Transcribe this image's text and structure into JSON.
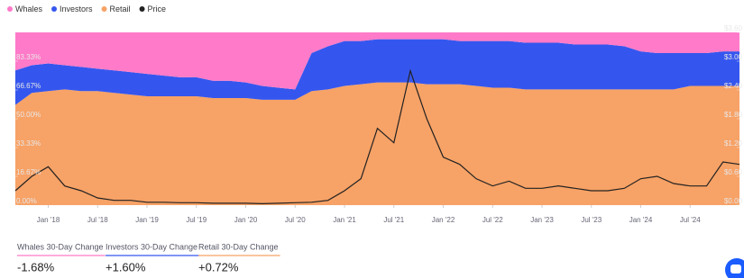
{
  "chart_data": {
    "type": "stacked-area-line",
    "x": [
      "2017-09",
      "2017-11",
      "2018-01",
      "2018-03",
      "2018-05",
      "2018-07",
      "2018-09",
      "2018-11",
      "2019-01",
      "2019-03",
      "2019-05",
      "2019-07",
      "2019-09",
      "2019-11",
      "2020-01",
      "2020-03",
      "2020-05",
      "2020-07",
      "2020-09",
      "2020-11",
      "2021-01",
      "2021-03",
      "2021-05",
      "2021-07",
      "2021-09",
      "2021-11",
      "2022-01",
      "2022-03",
      "2022-05",
      "2022-07",
      "2022-09",
      "2022-11",
      "2023-01",
      "2023-03",
      "2023-05",
      "2023-07",
      "2023-09",
      "2023-11",
      "2024-01",
      "2024-03",
      "2024-05",
      "2024-07",
      "2024-09",
      "2024-11",
      "2025-01"
    ],
    "xlim": [
      "2017-09",
      "2025-01"
    ],
    "xticks": [
      {
        "value": "2018-01",
        "label": "Jan '18"
      },
      {
        "value": "2018-07",
        "label": "Jul '18"
      },
      {
        "value": "2019-01",
        "label": "Jan '19"
      },
      {
        "value": "2019-07",
        "label": "Jul '19"
      },
      {
        "value": "2020-01",
        "label": "Jan '20"
      },
      {
        "value": "2020-07",
        "label": "Jul '20"
      },
      {
        "value": "2021-01",
        "label": "Jan '21"
      },
      {
        "value": "2021-07",
        "label": "Jul '21"
      },
      {
        "value": "2022-01",
        "label": "Jan '22"
      },
      {
        "value": "2022-07",
        "label": "Jul '22"
      },
      {
        "value": "2023-01",
        "label": "Jan '23"
      },
      {
        "value": "2023-07",
        "label": "Jul '23"
      },
      {
        "value": "2024-01",
        "label": "Jan '24"
      },
      {
        "value": "2024-07",
        "label": "Jul '24"
      }
    ],
    "ylim": [
      0,
      100
    ],
    "yticks": [
      {
        "value": 0,
        "label": "0.00%"
      },
      {
        "value": 16.67,
        "label": "16.67%"
      },
      {
        "value": 33.33,
        "label": "33.33%"
      },
      {
        "value": 50,
        "label": "50.00%"
      },
      {
        "value": 66.67,
        "label": "66.67%"
      },
      {
        "value": 83.33,
        "label": "83.33%"
      }
    ],
    "y2lim": [
      0,
      3.6
    ],
    "y2ticks": [
      {
        "value": 0,
        "label": "$0.00"
      },
      {
        "value": 0.6,
        "label": "$0.60"
      },
      {
        "value": 1.2,
        "label": "$1.20"
      },
      {
        "value": 1.8,
        "label": "$1.80"
      },
      {
        "value": 2.4,
        "label": "$2.40"
      },
      {
        "value": 3,
        "label": "$3.00"
      },
      {
        "value": 3.6,
        "label": "$3.60"
      }
    ],
    "series": [
      {
        "name": "Whales",
        "color": "#ff7ac8",
        "values": [
          22,
          19,
          18,
          19,
          20,
          21,
          22,
          23,
          24,
          25,
          26,
          26,
          28,
          28,
          29,
          31,
          32,
          33,
          12,
          8,
          5,
          5,
          4,
          4,
          4,
          4,
          4,
          5,
          5,
          5,
          5,
          6,
          6,
          6,
          7,
          7,
          7,
          8,
          11,
          12,
          12,
          12,
          12,
          11,
          11
        ]
      },
      {
        "name": "Investors",
        "color": "#3556ee",
        "values": [
          20,
          16,
          16,
          14,
          14,
          13,
          13,
          13,
          13,
          12,
          11,
          11,
          10,
          10,
          9,
          8,
          7,
          6,
          22,
          25,
          26,
          25,
          25,
          25,
          25,
          26,
          26,
          25,
          26,
          27,
          27,
          27,
          27,
          27,
          26,
          26,
          26,
          25,
          22,
          21,
          21,
          19,
          19,
          20,
          20
        ]
      },
      {
        "name": "Retail",
        "color": "#f7a266",
        "values": [
          58,
          65,
          66,
          67,
          66,
          66,
          65,
          64,
          63,
          63,
          63,
          63,
          62,
          62,
          62,
          61,
          61,
          61,
          66,
          67,
          69,
          70,
          71,
          71,
          71,
          70,
          70,
          70,
          69,
          68,
          68,
          67,
          67,
          67,
          67,
          67,
          67,
          67,
          67,
          67,
          67,
          69,
          69,
          69,
          69
        ]
      },
      {
        "name": "Price",
        "color": "#222222",
        "axis": "y2",
        "values": [
          0.3,
          0.6,
          0.8,
          0.4,
          0.3,
          0.15,
          0.1,
          0.1,
          0.06,
          0.06,
          0.05,
          0.05,
          0.04,
          0.04,
          0.04,
          0.03,
          0.04,
          0.05,
          0.06,
          0.1,
          0.3,
          0.55,
          1.6,
          1.3,
          2.8,
          1.8,
          1.0,
          0.85,
          0.55,
          0.4,
          0.5,
          0.35,
          0.35,
          0.4,
          0.35,
          0.3,
          0.3,
          0.35,
          0.55,
          0.6,
          0.45,
          0.4,
          0.4,
          0.9,
          0.85
        ]
      }
    ]
  },
  "stats": [
    {
      "label": "Whales 30-Day Change",
      "value": "-1.68%"
    },
    {
      "label": "Investors 30-Day Change",
      "value": "+1.60%"
    },
    {
      "label": "Retail 30-Day Change",
      "value": "+0.72%"
    }
  ]
}
